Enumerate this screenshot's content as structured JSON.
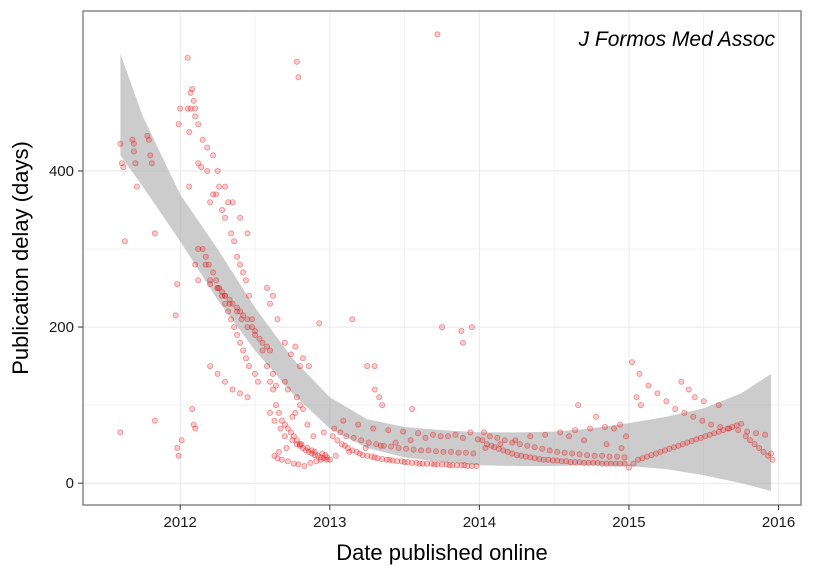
{
  "chart_data": {
    "type": "scatter",
    "annotation": "J Formos Med Assoc",
    "xlabel": "Date published online",
    "ylabel": "Publication delay (days)",
    "xlim": [
      2011.35,
      2016.15
    ],
    "ylim": [
      -28,
      605
    ],
    "x_ticks": [
      2012,
      2013,
      2014,
      2015,
      2016
    ],
    "x_tick_labels": [
      "2012",
      "2013",
      "2014",
      "2015",
      "2016"
    ],
    "y_ticks": [
      0,
      200,
      400
    ],
    "y_tick_labels": [
      "0",
      "200",
      "400"
    ],
    "grid": true,
    "colors": {
      "point": "#e41a1c",
      "band": "#999999",
      "grid": "#ebebeb",
      "panel_border": "#7f7f7f"
    },
    "smooth_band": {
      "x": [
        2011.6,
        2011.75,
        2012.0,
        2012.25,
        2012.5,
        2012.75,
        2013.0,
        2013.25,
        2013.5,
        2013.75,
        2014.0,
        2014.25,
        2014.5,
        2014.75,
        2015.0,
        2015.25,
        2015.5,
        2015.75,
        2015.95
      ],
      "upper": [
        550,
        470,
        370,
        300,
        225,
        160,
        110,
        82,
        72,
        68,
        65,
        65,
        66,
        70,
        77,
        85,
        96,
        115,
        140
      ],
      "lower": [
        420,
        380,
        310,
        235,
        170,
        115,
        70,
        45,
        33,
        27,
        23,
        22,
        22,
        23,
        22,
        18,
        10,
        0,
        -10
      ]
    },
    "series": [
      {
        "x": [
          2011.6,
          2011.61,
          2011.62,
          2011.63,
          2011.68,
          2011.69,
          2011.7,
          2011.71,
          2011.78,
          2011.79,
          2011.8,
          2011.81,
          2011.83,
          2011.69,
          2011.6,
          2011.83,
          2011.99,
          2012.0,
          2012.01,
          2011.98,
          2011.99,
          2012.05,
          2012.06,
          2012.07,
          2012.08,
          2012.09,
          2012.1,
          2012.12,
          2012.14,
          2012.18,
          2012.2,
          2012.22,
          2012.24,
          2012.26,
          2012.28,
          2012.3,
          2012.32,
          2012.34,
          2012.36,
          2012.38,
          2012.4,
          2012.42,
          2012.44,
          2012.46,
          2012.48,
          2012.5,
          2012.55,
          2012.58,
          2012.6,
          2012.05,
          2012.07,
          2012.1,
          2012.12,
          2012.15,
          2012.18,
          2012.22,
          2012.25,
          2012.3,
          2012.35,
          2012.4,
          2012.45,
          2012.06,
          2012.12,
          2012.17,
          2012.2,
          2012.25,
          2012.3,
          2012.33,
          2012.38,
          2012.41,
          2012.45,
          2012.15,
          2012.17,
          2012.19,
          2012.22,
          2012.24,
          2012.26,
          2012.28,
          2012.3,
          2012.32,
          2012.34,
          2012.36,
          2012.38,
          2012.4,
          2012.42,
          2012.44,
          2012.46,
          2012.5,
          2012.52,
          2012.1,
          2012.12,
          2012.2,
          2012.25,
          2012.28,
          2012.3,
          2012.33,
          2012.35,
          2012.38,
          2012.4,
          2012.42,
          2012.45,
          2012.48,
          2012.5,
          2012.53,
          2012.2,
          2012.25,
          2012.3,
          2012.35,
          2012.4,
          2012.45,
          2012.08,
          2012.09,
          2012.1,
          2011.97,
          2011.98,
          2012.55,
          2012.58,
          2012.6,
          2012.62,
          2012.64,
          2012.66,
          2012.68,
          2012.7,
          2012.72,
          2012.74,
          2012.76,
          2012.78,
          2012.8,
          2012.82,
          2012.84,
          2012.86,
          2012.88,
          2012.9,
          2012.92,
          2012.94,
          2012.96,
          2012.98,
          2013.0,
          2012.6,
          2012.63,
          2012.67,
          2012.7,
          2012.75,
          2012.78,
          2012.8,
          2012.85,
          2012.88,
          2012.9,
          2012.95,
          2012.97,
          2012.7,
          2012.72,
          2012.78,
          2012.8,
          2012.82,
          2012.75,
          2012.85,
          2012.62,
          2012.64,
          2012.77,
          2012.63,
          2012.65,
          2012.68,
          2012.72,
          2012.76,
          2012.79,
          2012.83,
          2012.87,
          2012.91,
          2012.94,
          2012.98,
          2012.66,
          2012.71,
          2012.81,
          2012.89,
          2012.96,
          2012.78,
          2012.79,
          2012.93,
          2012.58,
          2012.62,
          2012.7,
          2012.74,
          2012.8,
          2012.6,
          2012.65,
          2012.77,
          2012.82,
          2012.86,
          2013.15,
          2013.3,
          2013.3,
          2013.02,
          2013.05,
          2013.08,
          2013.1,
          2013.12,
          2013.15,
          2013.18,
          2013.2,
          2013.22,
          2013.25,
          2013.28,
          2013.3,
          2013.32,
          2013.35,
          2013.38,
          2013.4,
          2013.42,
          2013.45,
          2013.48,
          2013.5,
          2013.52,
          2013.55,
          2013.58,
          2013.6,
          2013.62,
          2013.65,
          2013.68,
          2013.7,
          2013.72,
          2013.75,
          2013.78,
          2013.8,
          2013.82,
          2013.85,
          2013.88,
          2013.9,
          2013.92,
          2013.95,
          2013.98,
          2013.03,
          2013.07,
          2013.11,
          2013.16,
          2013.21,
          2013.26,
          2013.31,
          2013.36,
          2013.41,
          2013.46,
          2013.51,
          2013.56,
          2013.61,
          2013.66,
          2013.71,
          2013.76,
          2013.81,
          2013.86,
          2013.91,
          2013.96,
          2013.04,
          2013.13,
          2013.24,
          2013.34,
          2013.44,
          2013.54,
          2013.64,
          2013.74,
          2013.84,
          2013.94,
          2013.09,
          2013.19,
          2013.29,
          2013.39,
          2013.49,
          2013.59,
          2013.69,
          2013.79,
          2013.89,
          2013.99,
          2013.72,
          2013.75,
          2013.88,
          2013.95,
          2013.89,
          2013.33,
          2013.35,
          2013.25,
          2013.55,
          2014.02,
          2014.05,
          2014.08,
          2014.1,
          2014.13,
          2014.16,
          2014.19,
          2014.22,
          2014.25,
          2014.28,
          2014.31,
          2014.34,
          2014.37,
          2014.4,
          2014.43,
          2014.46,
          2014.49,
          2014.52,
          2014.55,
          2014.58,
          2014.61,
          2014.64,
          2014.67,
          2014.7,
          2014.73,
          2014.76,
          2014.79,
          2014.82,
          2014.85,
          2014.88,
          2014.91,
          2014.94,
          2014.97,
          2014.03,
          2014.07,
          2014.12,
          2014.17,
          2014.22,
          2014.27,
          2014.32,
          2014.37,
          2014.42,
          2014.47,
          2014.52,
          2014.57,
          2014.62,
          2014.67,
          2014.72,
          2014.77,
          2014.82,
          2014.87,
          2014.92,
          2014.97,
          2014.04,
          2014.14,
          2014.24,
          2014.34,
          2014.44,
          2014.54,
          2014.64,
          2014.74,
          2014.84,
          2014.94,
          2014.66,
          2014.78,
          2014.9,
          2014.6,
          2014.7,
          2014.85,
          2014.95,
          2015.0,
          2015.03,
          2015.06,
          2015.09,
          2015.12,
          2015.15,
          2015.18,
          2015.21,
          2015.24,
          2015.27,
          2015.3,
          2015.33,
          2015.36,
          2015.39,
          2015.42,
          2015.45,
          2015.48,
          2015.51,
          2015.54,
          2015.57,
          2015.6,
          2015.63,
          2015.66,
          2015.69,
          2015.72,
          2015.75,
          2015.78,
          2015.81,
          2015.84,
          2015.87,
          2015.9,
          2015.93,
          2015.96,
          2015.02,
          2015.07,
          2015.13,
          2015.19,
          2015.25,
          2015.31,
          2015.37,
          2015.43,
          2015.49,
          2015.55,
          2015.61,
          2015.67,
          2015.73,
          2015.79,
          2015.85,
          2015.91,
          2014.98,
          2015.05,
          2015.08,
          2015.35,
          2015.4,
          2015.44,
          2015.5,
          2015.6,
          2015.95
        ],
        "y": [
          435,
          410,
          405,
          310,
          440,
          435,
          410,
          380,
          445,
          440,
          420,
          410,
          320,
          425,
          65,
          80,
          460,
          480,
          55,
          45,
          35,
          480,
          450,
          480,
          505,
          490,
          470,
          410,
          405,
          400,
          360,
          370,
          370,
          380,
          350,
          340,
          360,
          320,
          310,
          290,
          280,
          270,
          260,
          240,
          210,
          195,
          180,
          175,
          170,
          545,
          500,
          480,
          460,
          440,
          430,
          420,
          400,
          380,
          360,
          340,
          320,
          380,
          300,
          280,
          260,
          250,
          240,
          230,
          220,
          210,
          200,
          300,
          290,
          280,
          270,
          260,
          250,
          240,
          230,
          220,
          210,
          200,
          190,
          180,
          170,
          160,
          150,
          140,
          130,
          280,
          260,
          255,
          250,
          245,
          240,
          235,
          230,
          225,
          220,
          215,
          210,
          200,
          190,
          185,
          150,
          140,
          130,
          120,
          115,
          110,
          95,
          75,
          70,
          215,
          255,
          170,
          150,
          130,
          120,
          100,
          90,
          80,
          75,
          70,
          65,
          60,
          55,
          50,
          45,
          42,
          40,
          38,
          36,
          35,
          33,
          32,
          30,
          30,
          90,
          80,
          70,
          60,
          55,
          50,
          48,
          45,
          42,
          40,
          38,
          36,
          130,
          120,
          110,
          100,
          95,
          85,
          75,
          140,
          125,
          90,
          35,
          32,
          30,
          28,
          25,
          24,
          22,
          26,
          28,
          30,
          33,
          40,
          45,
          50,
          60,
          65,
          540,
          520,
          205,
          250,
          240,
          180,
          165,
          150,
          230,
          210,
          175,
          160,
          150,
          210,
          150,
          120,
          60,
          55,
          50,
          48,
          45,
          42,
          40,
          38,
          36,
          35,
          34,
          33,
          32,
          31,
          30,
          30,
          29,
          28,
          28,
          27,
          27,
          26,
          26,
          25,
          25,
          25,
          25,
          24,
          24,
          24,
          24,
          23,
          23,
          23,
          23,
          23,
          22,
          22,
          22,
          70,
          65,
          60,
          58,
          55,
          52,
          50,
          48,
          47,
          45,
          44,
          43,
          42,
          42,
          41,
          40,
          40,
          39,
          39,
          38,
          35,
          40,
          45,
          48,
          52,
          55,
          58,
          60,
          62,
          65,
          80,
          75,
          70,
          68,
          66,
          64,
          62,
          60,
          58,
          56,
          575,
          200,
          195,
          200,
          180,
          110,
          100,
          150,
          95,
          55,
          50,
          48,
          46,
          44,
          42,
          40,
          38,
          36,
          35,
          34,
          33,
          32,
          31,
          30,
          30,
          29,
          29,
          28,
          28,
          27,
          27,
          27,
          26,
          26,
          26,
          26,
          25,
          25,
          25,
          25,
          25,
          25,
          65,
          60,
          58,
          55,
          52,
          50,
          48,
          46,
          44,
          42,
          40,
          39,
          38,
          37,
          36,
          35,
          35,
          34,
          34,
          33,
          45,
          50,
          55,
          60,
          62,
          65,
          68,
          70,
          72,
          75,
          100,
          85,
          70,
          60,
          55,
          50,
          45,
          20,
          25,
          30,
          32,
          34,
          36,
          38,
          40,
          42,
          44,
          46,
          48,
          50,
          52,
          54,
          56,
          58,
          60,
          62,
          64,
          66,
          68,
          70,
          72,
          74,
          76,
          60,
          55,
          50,
          45,
          40,
          35,
          30,
          155,
          140,
          125,
          115,
          105,
          95,
          90,
          85,
          80,
          75,
          72,
          70,
          68,
          66,
          64,
          62,
          60,
          110,
          100,
          130,
          120,
          110,
          105,
          100,
          38
        ]
      }
    ]
  }
}
